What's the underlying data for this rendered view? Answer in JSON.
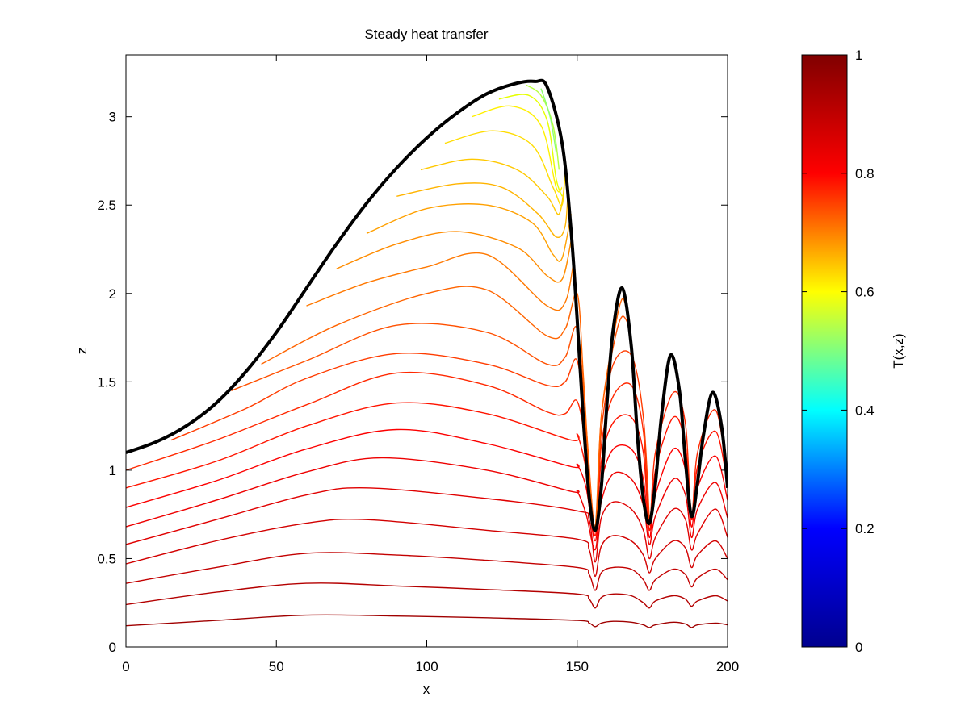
{
  "chart_data": {
    "type": "line",
    "title": "Steady heat transfer",
    "xlabel": "x",
    "ylabel": "z",
    "xlim": [
      0,
      200
    ],
    "ylim": [
      0,
      3.35
    ],
    "xticks": [
      0,
      50,
      100,
      150,
      200
    ],
    "yticks": [
      0,
      0.5,
      1,
      1.5,
      2,
      2.5,
      3
    ],
    "grid": false,
    "colorbar": {
      "label": "T(x,z)",
      "range": [
        0,
        1
      ],
      "ticks": [
        0,
        0.2,
        0.4,
        0.6,
        0.8,
        1
      ],
      "colormap": "jet",
      "colors": [
        "#00008f",
        "#0000ff",
        "#00ffff",
        "#ffff00",
        "#ff0000",
        "#800000"
      ]
    },
    "surface": {
      "name": "surface",
      "color": "#000000",
      "x": [
        0,
        10,
        20,
        30,
        40,
        50,
        60,
        70,
        80,
        90,
        100,
        110,
        120,
        130,
        136,
        140,
        145,
        148,
        150,
        152,
        154,
        156,
        158,
        160,
        162,
        165,
        168,
        170,
        172,
        174,
        176,
        178,
        181,
        184,
        186,
        188,
        190,
        192,
        195,
        198,
        200
      ],
      "y": [
        1.1,
        1.16,
        1.25,
        1.38,
        1.56,
        1.78,
        2.03,
        2.28,
        2.51,
        2.71,
        2.88,
        3.02,
        3.13,
        3.19,
        3.2,
        3.17,
        2.85,
        2.35,
        1.85,
        1.3,
        0.85,
        0.66,
        0.9,
        1.4,
        1.8,
        2.03,
        1.7,
        1.2,
        0.84,
        0.7,
        0.92,
        1.3,
        1.65,
        1.45,
        1.05,
        0.74,
        0.93,
        1.2,
        1.44,
        1.25,
        0.9
      ]
    },
    "isotherms": [
      {
        "T": 0.95,
        "color": "#a00000",
        "x": [
          0,
          30,
          60,
          90,
          120,
          150,
          154,
          156,
          158,
          162,
          168,
          172,
          174,
          176,
          182,
          186,
          188,
          190,
          196,
          200
        ],
        "y": [
          0.12,
          0.15,
          0.18,
          0.175,
          0.165,
          0.15,
          0.135,
          0.115,
          0.135,
          0.145,
          0.14,
          0.125,
          0.11,
          0.125,
          0.14,
          0.13,
          0.11,
          0.125,
          0.135,
          0.125
        ]
      },
      {
        "T": 0.92,
        "color": "#b40000",
        "x": [
          0,
          30,
          60,
          90,
          120,
          150,
          154,
          156,
          158,
          162,
          168,
          172,
          174,
          176,
          182,
          186,
          188,
          190,
          196,
          200
        ],
        "y": [
          0.24,
          0.31,
          0.36,
          0.345,
          0.325,
          0.3,
          0.27,
          0.22,
          0.28,
          0.3,
          0.29,
          0.25,
          0.22,
          0.26,
          0.29,
          0.27,
          0.23,
          0.26,
          0.29,
          0.26
        ]
      },
      {
        "T": 0.89,
        "color": "#c30000",
        "x": [
          0,
          30,
          60,
          90,
          120,
          150,
          154,
          156,
          158,
          162,
          168,
          172,
          174,
          176,
          182,
          186,
          188,
          190,
          196,
          200
        ],
        "y": [
          0.36,
          0.45,
          0.53,
          0.52,
          0.49,
          0.45,
          0.41,
          0.32,
          0.42,
          0.45,
          0.44,
          0.38,
          0.32,
          0.38,
          0.44,
          0.41,
          0.34,
          0.39,
          0.44,
          0.38
        ]
      },
      {
        "T": 0.86,
        "color": "#d20000",
        "x": [
          0,
          30,
          60,
          80,
          120,
          150,
          154,
          156,
          158,
          162,
          168,
          172,
          174,
          176,
          182,
          186,
          188,
          190,
          196,
          200
        ],
        "y": [
          0.47,
          0.6,
          0.7,
          0.72,
          0.66,
          0.61,
          0.55,
          0.4,
          0.57,
          0.63,
          0.6,
          0.52,
          0.42,
          0.5,
          0.6,
          0.56,
          0.45,
          0.52,
          0.6,
          0.5
        ]
      },
      {
        "T": 0.83,
        "color": "#e00000",
        "x": [
          0,
          30,
          60,
          80,
          120,
          150,
          154,
          156,
          158,
          162,
          168,
          172,
          174,
          176,
          182,
          186,
          188,
          190,
          196,
          200
        ],
        "y": [
          0.58,
          0.72,
          0.86,
          0.9,
          0.84,
          0.77,
          0.72,
          0.48,
          0.73,
          0.82,
          0.78,
          0.66,
          0.5,
          0.62,
          0.78,
          0.72,
          0.55,
          0.64,
          0.78,
          0.62
        ]
      },
      {
        "T": 0.8,
        "color": "#ee0000",
        "x": [
          0,
          30,
          60,
          85,
          120,
          148,
          150,
          153,
          156,
          158,
          162,
          168,
          172,
          174,
          176,
          182,
          186,
          188,
          190,
          196,
          200
        ],
        "y": [
          0.68,
          0.83,
          0.99,
          1.07,
          1.0,
          0.88,
          0.88,
          0.75,
          0.55,
          0.82,
          0.98,
          0.95,
          0.8,
          0.58,
          0.74,
          0.95,
          0.86,
          0.62,
          0.78,
          0.93,
          0.73
        ]
      },
      {
        "T": 0.77,
        "color": "#fc0000",
        "x": [
          0,
          30,
          60,
          90,
          120,
          148,
          150,
          153,
          156,
          158,
          162,
          168,
          172,
          174,
          176,
          182,
          186,
          188,
          190,
          196,
          200
        ],
        "y": [
          0.79,
          0.94,
          1.12,
          1.23,
          1.15,
          1.02,
          1.03,
          0.9,
          0.6,
          0.93,
          1.12,
          1.12,
          0.95,
          0.62,
          0.86,
          1.12,
          1.0,
          0.68,
          0.9,
          1.08,
          0.83
        ]
      },
      {
        "T": 0.74,
        "color": "#ff1400",
        "x": [
          0,
          30,
          60,
          90,
          120,
          148,
          150,
          153,
          156,
          158,
          162,
          168,
          172,
          174,
          176,
          182,
          186,
          188,
          190,
          196,
          200
        ],
        "y": [
          0.9,
          1.05,
          1.25,
          1.38,
          1.32,
          1.17,
          1.2,
          1.0,
          0.63,
          1.05,
          1.27,
          1.3,
          1.1,
          0.66,
          1.0,
          1.3,
          1.14,
          0.72,
          1.02,
          1.22,
          0.92
        ]
      },
      {
        "T": 0.72,
        "color": "#ff2800",
        "x": [
          0,
          30,
          60,
          90,
          120,
          140,
          146,
          150,
          153,
          156,
          158,
          162,
          168,
          172,
          174,
          176,
          182,
          186,
          188,
          190,
          196,
          200
        ],
        "y": [
          1.0,
          1.17,
          1.37,
          1.55,
          1.48,
          1.33,
          1.32,
          1.39,
          1.12,
          0.65,
          1.14,
          1.42,
          1.48,
          1.22,
          0.69,
          1.1,
          1.44,
          1.26,
          0.74,
          1.1,
          1.34,
          0.95
        ]
      },
      {
        "T": 0.7,
        "color": "#ff3c00",
        "x": [
          15,
          40,
          60,
          90,
          120,
          140,
          146,
          150,
          153,
          156,
          158,
          162,
          168,
          172,
          174
        ],
        "y": [
          1.17,
          1.35,
          1.52,
          1.66,
          1.6,
          1.48,
          1.5,
          1.62,
          1.2,
          0.66,
          1.22,
          1.6,
          1.65,
          1.3,
          0.72
        ]
      },
      {
        "T": 0.69,
        "color": "#ff5000",
        "x": [
          35,
          60,
          90,
          120,
          140,
          146,
          150,
          153,
          156,
          158,
          162,
          165,
          168
        ],
        "y": [
          1.45,
          1.62,
          1.82,
          1.78,
          1.6,
          1.64,
          1.8,
          1.25,
          0.67,
          1.3,
          1.7,
          1.87,
          1.78
        ]
      },
      {
        "T": 0.68,
        "color": "#ff6400",
        "x": [
          45,
          70,
          100,
          120,
          140,
          146,
          150,
          152,
          154,
          156,
          158,
          162,
          165,
          167
        ],
        "y": [
          1.6,
          1.82,
          2.0,
          2.02,
          1.76,
          1.8,
          2.0,
          1.55,
          1.0,
          0.68,
          1.3,
          1.75,
          1.97,
          1.85
        ]
      },
      {
        "T": 0.67,
        "color": "#ff7800",
        "x": [
          60,
          80,
          100,
          120,
          140,
          146,
          149
        ],
        "y": [
          1.93,
          2.06,
          2.15,
          2.22,
          1.93,
          1.95,
          2.2
        ]
      },
      {
        "T": 0.66,
        "color": "#ff8c00",
        "x": [
          70,
          90,
          110,
          130,
          140,
          145,
          148
        ],
        "y": [
          2.14,
          2.28,
          2.35,
          2.26,
          2.1,
          2.08,
          2.3
        ]
      },
      {
        "T": 0.65,
        "color": "#ffa000",
        "x": [
          80,
          100,
          120,
          135,
          142,
          145,
          148
        ],
        "y": [
          2.34,
          2.48,
          2.5,
          2.4,
          2.22,
          2.2,
          2.45
        ]
      },
      {
        "T": 0.64,
        "color": "#ffb400",
        "x": [
          90,
          110,
          125,
          137,
          143,
          146,
          147
        ],
        "y": [
          2.55,
          2.62,
          2.6,
          2.45,
          2.32,
          2.38,
          2.6
        ]
      },
      {
        "T": 0.63,
        "color": "#ffc800",
        "x": [
          98,
          115,
          130,
          140,
          144,
          146
        ],
        "y": [
          2.7,
          2.76,
          2.7,
          2.55,
          2.45,
          2.65
        ]
      },
      {
        "T": 0.62,
        "color": "#ffdc00",
        "x": [
          106,
          122,
          135,
          142,
          145,
          146
        ],
        "y": [
          2.85,
          2.92,
          2.84,
          2.6,
          2.5,
          2.72
        ]
      },
      {
        "T": 0.61,
        "color": "#fff000",
        "x": [
          115,
          128,
          138,
          143,
          145
        ],
        "y": [
          3.0,
          3.06,
          2.95,
          2.6,
          2.6
        ]
      },
      {
        "T": 0.6,
        "color": "#e6ff00",
        "x": [
          124,
          134,
          140,
          143,
          145
        ],
        "y": [
          3.1,
          3.12,
          2.98,
          2.65,
          2.55
        ]
      },
      {
        "T": 0.58,
        "color": "#b4ff3c",
        "x": [
          133,
          138,
          142,
          144
        ],
        "y": [
          3.18,
          3.12,
          2.95,
          2.7
        ]
      },
      {
        "T": 0.56,
        "color": "#8cff6e",
        "x": [
          138,
          141,
          143
        ],
        "y": [
          3.16,
          3.0,
          2.8
        ]
      }
    ]
  }
}
